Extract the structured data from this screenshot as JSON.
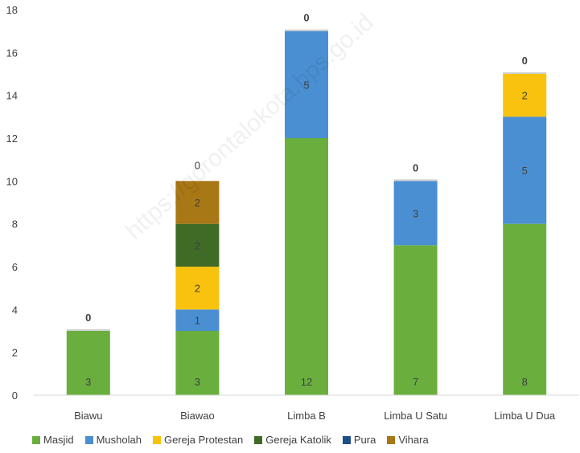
{
  "chart_data": {
    "type": "bar",
    "stacked": true,
    "categories": [
      "Biawu",
      "Biawao",
      "Limba B",
      "Limba U Satu",
      "Limba U Dua"
    ],
    "series": [
      {
        "name": "Masjid",
        "color": "#6aaf3e",
        "values": [
          3,
          3,
          12,
          7,
          8
        ]
      },
      {
        "name": "Musholah",
        "color": "#4a8fd2",
        "values": [
          0,
          1,
          5,
          3,
          5
        ]
      },
      {
        "name": "Gereja Protestan",
        "color": "#f9c20e",
        "values": [
          0,
          2,
          0,
          0,
          2
        ]
      },
      {
        "name": "Gereja Katolik",
        "color": "#3f6b27",
        "values": [
          0,
          2,
          0,
          0,
          0
        ]
      },
      {
        "name": "Pura",
        "color": "#1f4e86",
        "values": [
          0,
          0,
          0,
          0,
          0
        ]
      },
      {
        "name": "Vihara",
        "color": "#a87716",
        "values": [
          0,
          2,
          0,
          0,
          0
        ]
      }
    ],
    "top_labels": [
      "0",
      "",
      "0",
      "0",
      "0"
    ],
    "ylim": [
      0,
      18
    ],
    "yticks": [
      0,
      2,
      4,
      6,
      8,
      10,
      12,
      14,
      16,
      18
    ],
    "grid": false,
    "legend_position": "bottom",
    "title": "",
    "xlabel": "",
    "ylabel": ""
  },
  "watermark": "https://gorontalokota.bps.go.id"
}
